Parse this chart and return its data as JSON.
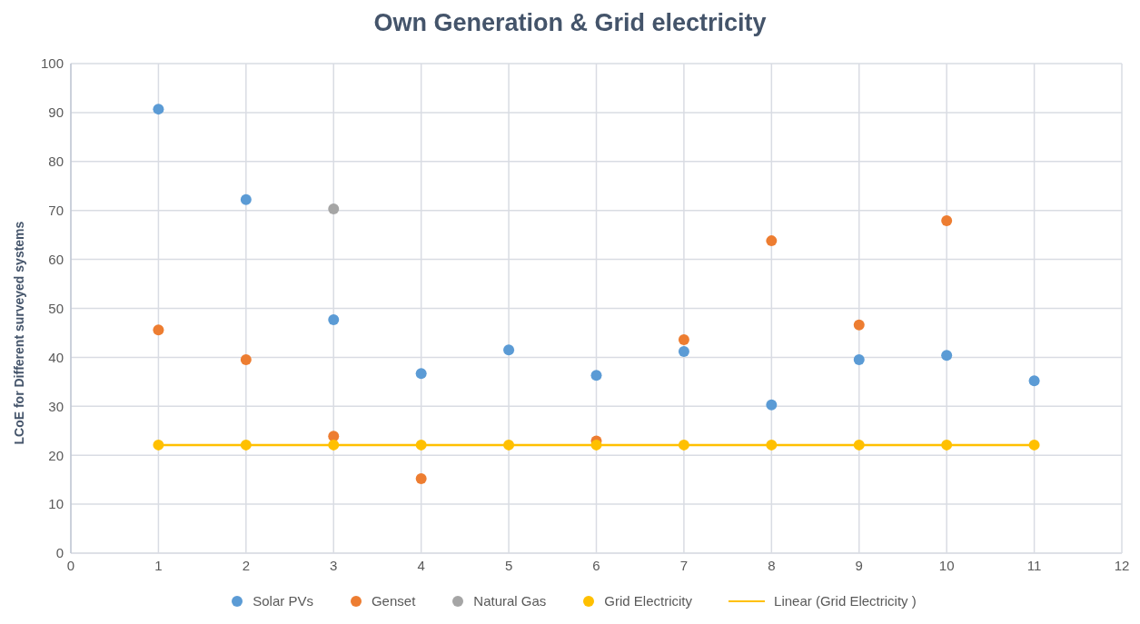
{
  "chart_data": {
    "type": "scatter",
    "title": "Own Generation & Grid electricity",
    "ylabel": "LCoE for Different surveyed systems",
    "x": [
      1,
      2,
      3,
      4,
      5,
      6,
      7,
      8,
      9,
      10,
      11
    ],
    "series": [
      {
        "name": "Solar PVs",
        "color": "#5b9bd5",
        "values": [
          90.7,
          72.2,
          47.7,
          36.7,
          41.5,
          36.3,
          41.2,
          30.3,
          39.5,
          40.4,
          35.2
        ]
      },
      {
        "name": "Genset",
        "color": "#ed7d31",
        "values": [
          45.6,
          39.5,
          23.9,
          15.2,
          null,
          22.9,
          43.6,
          63.8,
          46.6,
          67.9,
          null
        ]
      },
      {
        "name": "Natural Gas",
        "color": "#a5a5a5",
        "values": [
          null,
          null,
          70.3,
          null,
          null,
          null,
          null,
          null,
          null,
          null,
          null
        ]
      },
      {
        "name": "Grid Electricity",
        "color": "#ffc000",
        "values": [
          22.1,
          22.1,
          22.1,
          22.1,
          22.1,
          22.1,
          22.1,
          22.1,
          22.1,
          22.1,
          22.1
        ]
      },
      {
        "name": "Linear (Grid Electricity )",
        "color": "#ffc000",
        "type": "line",
        "marker": "none",
        "x": [
          1,
          11
        ],
        "values": [
          22.1,
          22.1
        ]
      }
    ],
    "xlim": [
      0,
      12
    ],
    "xticks": [
      0,
      1,
      2,
      3,
      4,
      5,
      6,
      7,
      8,
      9,
      10,
      11,
      12
    ],
    "ylim": [
      0,
      100
    ],
    "yticks": [
      0,
      10,
      20,
      30,
      40,
      50,
      60,
      70,
      80,
      90,
      100
    ],
    "grid": true,
    "legend": "bottom",
    "marker": "circle",
    "line_style": "solid"
  }
}
